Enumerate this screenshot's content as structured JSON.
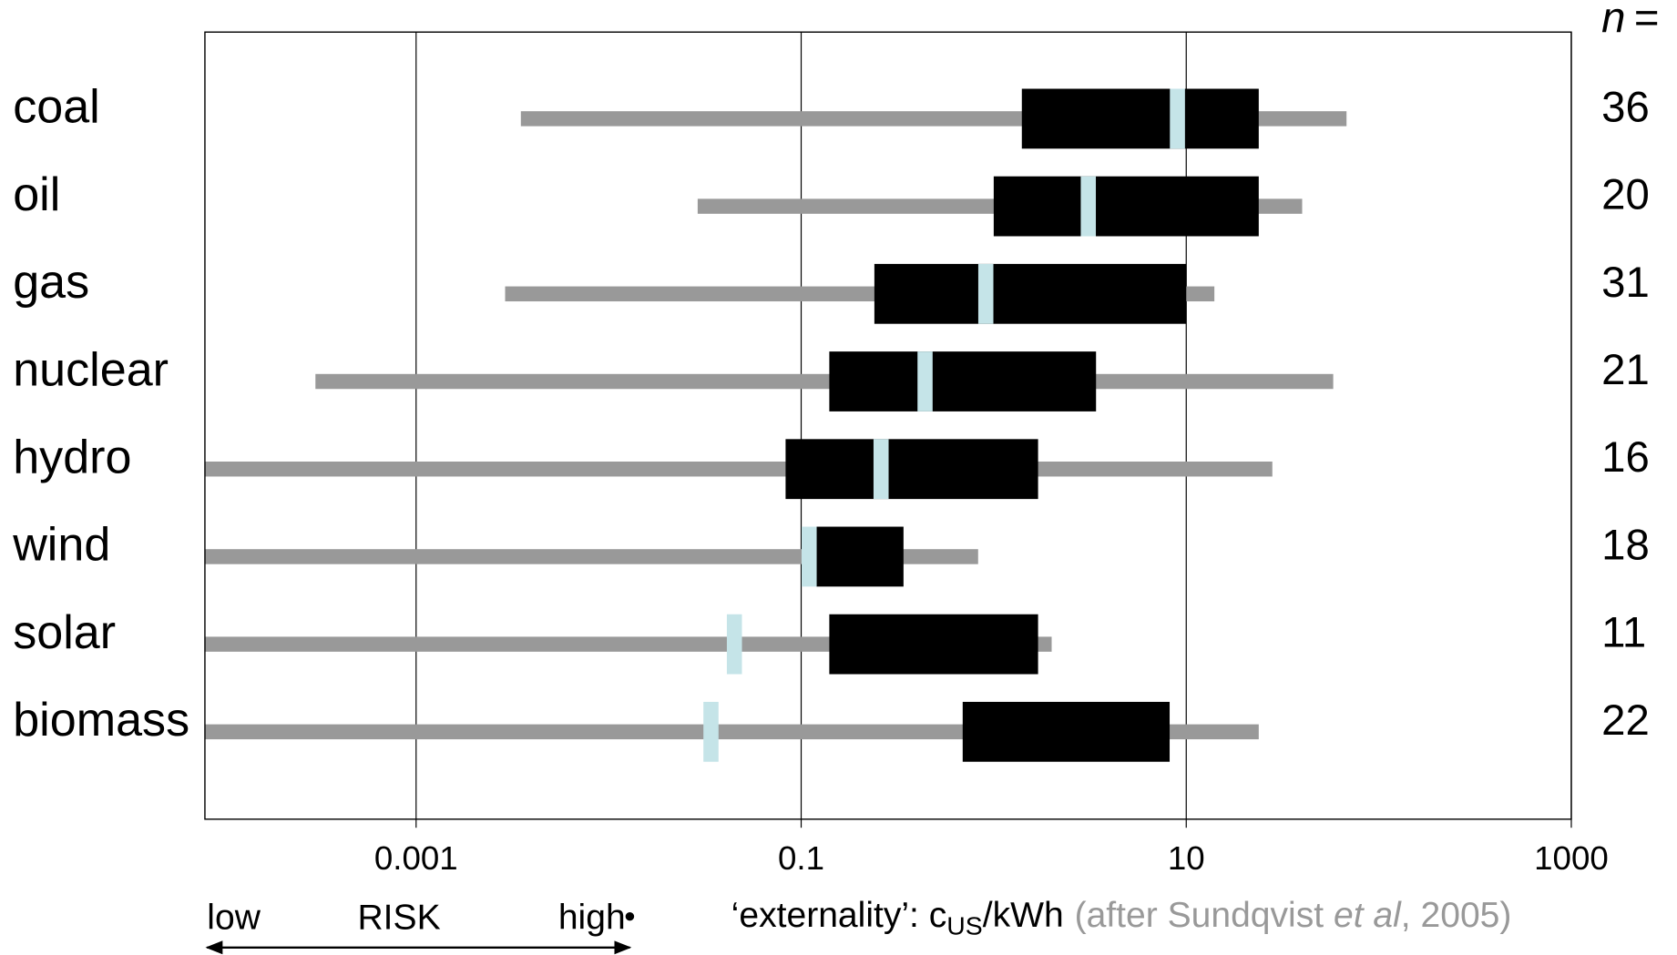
{
  "chart_data": {
    "type": "boxplot",
    "categories": [
      "coal",
      "oil",
      "gas",
      "nuclear",
      "hydro",
      "wind",
      "solar",
      "biomass"
    ],
    "min": [
      0.0035,
      0.029,
      0.0029,
      0.0003,
      8e-05,
      8e-05,
      8e-05,
      8e-05
    ],
    "q1": [
      1.4,
      1.0,
      0.24,
      0.14,
      0.083,
      0.12,
      0.14,
      0.69
    ],
    "median": [
      9.0,
      3.1,
      0.91,
      0.44,
      0.26,
      0.11,
      0.045,
      0.034
    ],
    "q3": [
      23.8,
      23.8,
      10,
      3.4,
      1.7,
      0.34,
      1.7,
      8.2
    ],
    "max": [
      68,
      40,
      14,
      58,
      28,
      0.83,
      2.0,
      23.8
    ],
    "n": [
      36,
      20,
      31,
      21,
      16,
      18,
      11,
      22
    ],
    "n_header_symbol": "n",
    "n_header_eq": "=",
    "xlim": [
      8e-05,
      1000
    ],
    "xticks": [
      0.001,
      0.1,
      10,
      1000
    ],
    "log_x": true,
    "grid": true,
    "whisker_color": "#999999",
    "box_color": "#000000",
    "median_color": "#c5e4e8",
    "x_label": {
      "main": "‘externality’: c",
      "sub": "US",
      "unit": "/kWh",
      "source": "(after Sundqvist ",
      "source_italic": "et al",
      "source_end": ", 2005)"
    },
    "risk_axis": {
      "low": "low",
      "label": "RISK",
      "high": "high"
    }
  }
}
